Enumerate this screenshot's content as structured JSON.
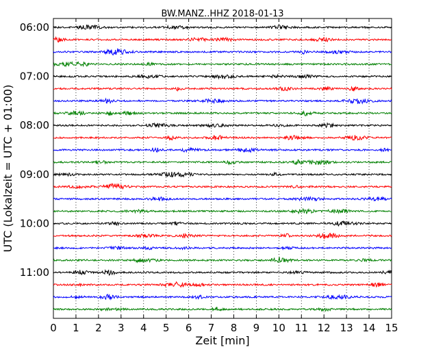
{
  "chart_data": {
    "type": "line",
    "title": "BW.MANZ..HHZ 2018-01-13",
    "xlabel": "Zeit  [min]",
    "ylabel": "UTC (Lokalzeit = UTC + 01:00)",
    "xlim": [
      0,
      15
    ],
    "x_ticks": [
      "0",
      "1",
      "2",
      "3",
      "4",
      "5",
      "6",
      "7",
      "8",
      "9",
      "10",
      "11",
      "12",
      "13",
      "14",
      "15"
    ],
    "y_ticks": [
      "06:00",
      "07:00",
      "08:00",
      "09:00",
      "10:00",
      "11:00"
    ],
    "rows_per_hour": 4,
    "row_minutes": 15,
    "row_count": 24,
    "grid": "vertical-dotted",
    "trace_colors": [
      "#000000",
      "#ff0000",
      "#0000ff",
      "#008000"
    ]
  }
}
